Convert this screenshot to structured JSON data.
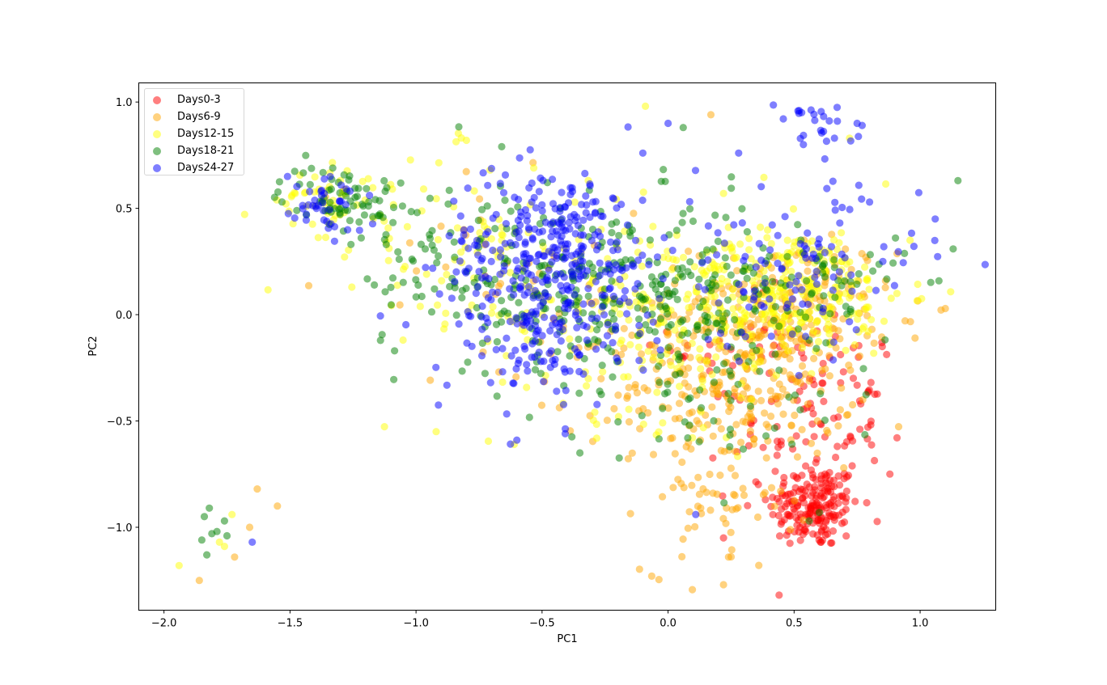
{
  "chart_data": {
    "type": "scatter",
    "title": "",
    "xlabel": "PC1",
    "ylabel": "PC2",
    "xlim": [
      -2.1,
      1.3
    ],
    "ylim": [
      -1.39,
      1.09
    ],
    "xticks": [
      "-2.0",
      "-1.5",
      "-1.0",
      "-0.5",
      "0.0",
      "0.5",
      "1.0"
    ],
    "yticks": [
      "-1.0",
      "-0.5",
      "0.0",
      "0.5",
      "1.0"
    ],
    "grid": false,
    "legend_position": "upper left",
    "marker_alpha": 0.5,
    "series": [
      {
        "name": "Days0-3",
        "color": "#ff0000",
        "clusters": [
          {
            "cx": 0.58,
            "cy": -0.9,
            "sx": 0.09,
            "sy": 0.1,
            "n": 190
          },
          {
            "cx": 0.55,
            "cy": -0.55,
            "sx": 0.15,
            "sy": 0.15,
            "n": 70
          },
          {
            "cx": 0.38,
            "cy": -0.15,
            "sx": 0.18,
            "sy": 0.15,
            "n": 45
          },
          {
            "cx": 0.75,
            "cy": -0.25,
            "sx": 0.1,
            "sy": 0.1,
            "n": 15
          }
        ],
        "points": [
          [
            0.88,
            -0.75
          ],
          [
            0.85,
            -0.15
          ],
          [
            0.22,
            -1.05
          ]
        ]
      },
      {
        "name": "Days6-9",
        "color": "#ffa500",
        "clusters": [
          {
            "cx": 0.3,
            "cy": -0.3,
            "sx": 0.22,
            "sy": 0.2,
            "n": 260
          },
          {
            "cx": 0.5,
            "cy": 0.05,
            "sx": 0.2,
            "sy": 0.15,
            "n": 150
          },
          {
            "cx": 0.2,
            "cy": -0.85,
            "sx": 0.15,
            "sy": 0.18,
            "n": 60
          },
          {
            "cx": -0.3,
            "cy": -0.2,
            "sx": 0.3,
            "sy": 0.25,
            "n": 60
          },
          {
            "cx": -0.8,
            "cy": 0.35,
            "sx": 0.3,
            "sy": 0.2,
            "n": 25
          }
        ],
        "points": [
          [
            -1.86,
            -1.25
          ],
          [
            -1.72,
            -1.14
          ],
          [
            -1.66,
            -1.0
          ],
          [
            -1.63,
            -0.82
          ],
          [
            -1.55,
            -0.9
          ],
          [
            0.22,
            -1.27
          ],
          [
            0.17,
            0.94
          ],
          [
            0.98,
            -0.11
          ],
          [
            0.24,
            -1.14
          ]
        ]
      },
      {
        "name": "Days12-15",
        "color": "#ffff00",
        "clusters": [
          {
            "cx": 0.5,
            "cy": 0.1,
            "sx": 0.22,
            "sy": 0.15,
            "n": 250
          },
          {
            "cx": 0.0,
            "cy": 0.0,
            "sx": 0.35,
            "sy": 0.25,
            "n": 200
          },
          {
            "cx": -0.9,
            "cy": 0.35,
            "sx": 0.35,
            "sy": 0.2,
            "n": 90
          },
          {
            "cx": -1.35,
            "cy": 0.55,
            "sx": 0.1,
            "sy": 0.07,
            "n": 40
          }
        ],
        "points": [
          [
            -1.94,
            -1.18
          ],
          [
            -1.78,
            -1.07
          ],
          [
            -1.76,
            -1.09
          ],
          [
            -1.73,
            -0.94
          ],
          [
            -0.92,
            -0.55
          ],
          [
            -0.09,
            0.98
          ],
          [
            -0.8,
            0.82
          ],
          [
            0.22,
            0.57
          ],
          [
            0.72,
            0.83
          ],
          [
            0.96,
            0.35
          ]
        ]
      },
      {
        "name": "Days18-21",
        "color": "#008000",
        "clusters": [
          {
            "cx": -0.2,
            "cy": 0.1,
            "sx": 0.3,
            "sy": 0.22,
            "n": 260
          },
          {
            "cx": -1.3,
            "cy": 0.55,
            "sx": 0.12,
            "sy": 0.08,
            "n": 70
          },
          {
            "cx": -0.85,
            "cy": 0.25,
            "sx": 0.22,
            "sy": 0.22,
            "n": 80
          },
          {
            "cx": 0.5,
            "cy": 0.1,
            "sx": 0.22,
            "sy": 0.18,
            "n": 90
          },
          {
            "cx": 0.2,
            "cy": -0.45,
            "sx": 0.25,
            "sy": 0.15,
            "n": 40
          }
        ],
        "points": [
          [
            -1.85,
            -1.06
          ],
          [
            -1.84,
            -0.95
          ],
          [
            -1.83,
            -1.13
          ],
          [
            -1.82,
            -0.91
          ],
          [
            -1.81,
            -1.03
          ],
          [
            -1.79,
            -1.02
          ],
          [
            -1.76,
            -0.97
          ],
          [
            -1.75,
            -1.04
          ],
          [
            1.15,
            0.63
          ],
          [
            0.56,
            -0.97
          ],
          [
            0.6,
            -0.93
          ],
          [
            -0.35,
            -0.65
          ],
          [
            -0.66,
            0.79
          ],
          [
            0.06,
            0.88
          ]
        ]
      },
      {
        "name": "Days24-27",
        "color": "#0000ff",
        "clusters": [
          {
            "cx": -0.45,
            "cy": 0.3,
            "sx": 0.22,
            "sy": 0.2,
            "n": 300
          },
          {
            "cx": -0.5,
            "cy": -0.1,
            "sx": 0.2,
            "sy": 0.2,
            "n": 120
          },
          {
            "cx": -1.35,
            "cy": 0.52,
            "sx": 0.07,
            "sy": 0.07,
            "n": 40
          },
          {
            "cx": 0.5,
            "cy": 0.2,
            "sx": 0.25,
            "sy": 0.2,
            "n": 110
          },
          {
            "cx": 0.58,
            "cy": 0.88,
            "sx": 0.08,
            "sy": 0.06,
            "n": 22
          }
        ],
        "points": [
          [
            -1.65,
            -1.07
          ],
          [
            -1.51,
            0.65
          ],
          [
            1.06,
            0.45
          ],
          [
            0.11,
            -0.94
          ],
          [
            -0.6,
            -0.59
          ],
          [
            0.0,
            0.9
          ],
          [
            0.52,
            0.96
          ],
          [
            0.53,
            0.95
          ],
          [
            0.75,
            0.9
          ],
          [
            0.77,
            0.89
          ],
          [
            0.66,
            0.83
          ],
          [
            -0.1,
            0.76
          ],
          [
            0.28,
            0.76
          ]
        ]
      }
    ]
  }
}
